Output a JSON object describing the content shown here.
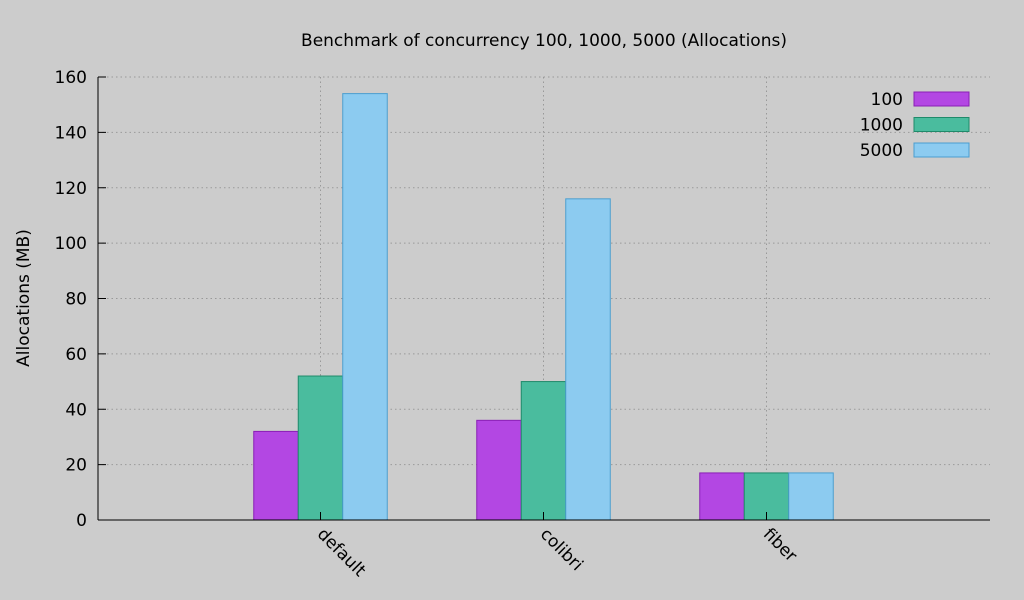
{
  "chart_data": {
    "type": "bar",
    "title": "Benchmark of concurrency 100, 1000, 5000 (Allocations)",
    "xlabel": "",
    "ylabel": "Allocations (MB)",
    "categories": [
      "default",
      "colibri",
      "fiber"
    ],
    "series": [
      {
        "name": "100",
        "values": [
          32,
          36,
          17
        ],
        "color": "#b347e3",
        "border": "#8a1fb5"
      },
      {
        "name": "1000",
        "values": [
          52,
          50,
          17
        ],
        "color": "#4abc9e",
        "border": "#1f8a6a"
      },
      {
        "name": "5000",
        "values": [
          154,
          116,
          17
        ],
        "color": "#8ccbf0",
        "border": "#4a9ed0"
      }
    ],
    "ylim": [
      0,
      160
    ],
    "yticks": [
      "0",
      "20",
      "40",
      "60",
      "80",
      "100",
      "120",
      "140",
      "160"
    ],
    "grid": true,
    "legend_position": "top-right"
  }
}
